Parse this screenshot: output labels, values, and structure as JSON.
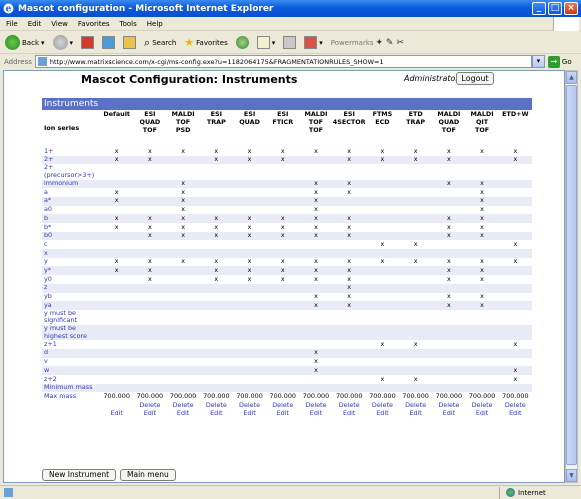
{
  "window": {
    "title": "Mascot configuration - Microsoft Internet Explorer",
    "buttons": [
      "_",
      "□",
      "×"
    ]
  },
  "menu": [
    "File",
    "Edit",
    "View",
    "Favorites",
    "Tools",
    "Help"
  ],
  "toolbar": {
    "back": "Back",
    "search": "Search",
    "favorites": "Favorites",
    "powermarks": "Powermarks"
  },
  "address": {
    "label": "Address",
    "url": "http://www.matrixscience.com/x-cgi/ms-config.exe?u=1182064175&FRAGMENTATIONRULES_SHOW=1",
    "go": "Go"
  },
  "page": {
    "title": "Mascot Configuration: Instruments",
    "user": "Administrator",
    "logout": "Logout",
    "section": "Instruments"
  },
  "table": {
    "row_header": "Ion series",
    "columns": [
      "Default",
      "ESI\nQUAD\nTOF",
      "MALDI\nTOF\nPSD",
      "ESI\nTRAP",
      "ESI\nQUAD",
      "ESI\nFTICR",
      "MALDI\nTOF\nTOF",
      "ESI\n4SECTOR",
      "FTMS\nECD",
      "ETD\nTRAP",
      "MALDI\nQUAD\nTOF",
      "MALDI\nQIT\nTOF",
      "ETD+W"
    ],
    "rows": [
      {
        "label": "1+",
        "marks": [
          "x",
          "x",
          "x",
          "x",
          "x",
          "x",
          "x",
          "x",
          "x",
          "x",
          "x",
          "x",
          "x"
        ]
      },
      {
        "label": "2+",
        "marks": [
          "x",
          "x",
          "",
          "x",
          "x",
          "x",
          "",
          "x",
          "x",
          "x",
          "x",
          "",
          "x"
        ]
      },
      {
        "label": "2+ (precursor>3+)",
        "marks": [
          "",
          "",
          "",
          "",
          "",
          "",
          "",
          "",
          "",
          "",
          "",
          "",
          ""
        ]
      },
      {
        "label": "immonium",
        "marks": [
          "",
          "",
          "x",
          "",
          "",
          "",
          "x",
          "x",
          "",
          "",
          "x",
          "x",
          ""
        ]
      },
      {
        "label": "a",
        "marks": [
          "x",
          "",
          "x",
          "",
          "",
          "",
          "x",
          "x",
          "",
          "",
          "",
          "x",
          ""
        ]
      },
      {
        "label": "a*",
        "marks": [
          "x",
          "",
          "x",
          "",
          "",
          "",
          "x",
          "",
          "",
          "",
          "",
          "x",
          ""
        ]
      },
      {
        "label": "a0",
        "marks": [
          "",
          "",
          "x",
          "",
          "",
          "",
          "x",
          "",
          "",
          "",
          "",
          "x",
          ""
        ]
      },
      {
        "label": "b",
        "marks": [
          "x",
          "x",
          "x",
          "x",
          "x",
          "x",
          "x",
          "x",
          "",
          "",
          "x",
          "x",
          ""
        ]
      },
      {
        "label": "b*",
        "marks": [
          "x",
          "x",
          "x",
          "x",
          "x",
          "x",
          "x",
          "x",
          "",
          "",
          "x",
          "x",
          ""
        ]
      },
      {
        "label": "b0",
        "marks": [
          "",
          "x",
          "x",
          "x",
          "x",
          "x",
          "x",
          "x",
          "",
          "",
          "x",
          "x",
          ""
        ]
      },
      {
        "label": "c",
        "marks": [
          "",
          "",
          "",
          "",
          "",
          "",
          "",
          "",
          "x",
          "x",
          "",
          "",
          "x"
        ]
      },
      {
        "label": "x",
        "marks": [
          "",
          "",
          "",
          "",
          "",
          "",
          "",
          "",
          "",
          "",
          "",
          "",
          ""
        ]
      },
      {
        "label": "y",
        "marks": [
          "x",
          "x",
          "x",
          "x",
          "x",
          "x",
          "x",
          "x",
          "x",
          "x",
          "x",
          "x",
          "x"
        ]
      },
      {
        "label": "y*",
        "marks": [
          "x",
          "x",
          "",
          "x",
          "x",
          "x",
          "x",
          "x",
          "",
          "",
          "x",
          "x",
          ""
        ]
      },
      {
        "label": "y0",
        "marks": [
          "",
          "x",
          "",
          "x",
          "x",
          "x",
          "x",
          "x",
          "",
          "",
          "x",
          "x",
          ""
        ]
      },
      {
        "label": "z",
        "marks": [
          "",
          "",
          "",
          "",
          "",
          "",
          "",
          "x",
          "",
          "",
          "",
          "",
          ""
        ]
      },
      {
        "label": "yb",
        "marks": [
          "",
          "",
          "",
          "",
          "",
          "",
          "x",
          "x",
          "",
          "",
          "x",
          "x",
          ""
        ]
      },
      {
        "label": "ya",
        "marks": [
          "",
          "",
          "",
          "",
          "",
          "",
          "x",
          "x",
          "",
          "",
          "x",
          "x",
          ""
        ]
      },
      {
        "label": "y must be significant",
        "marks": [
          "",
          "",
          "",
          "",
          "",
          "",
          "",
          "",
          "",
          "",
          "",
          "",
          ""
        ]
      },
      {
        "label": "y must be highest score",
        "marks": [
          "",
          "",
          "",
          "",
          "",
          "",
          "",
          "",
          "",
          "",
          "",
          "",
          ""
        ]
      },
      {
        "label": "z+1",
        "marks": [
          "",
          "",
          "",
          "",
          "",
          "",
          "",
          "",
          "x",
          "x",
          "",
          "",
          "x"
        ]
      },
      {
        "label": "d",
        "marks": [
          "",
          "",
          "",
          "",
          "",
          "",
          "x",
          "",
          "",
          "",
          "",
          "",
          ""
        ]
      },
      {
        "label": "v",
        "marks": [
          "",
          "",
          "",
          "",
          "",
          "",
          "x",
          "",
          "",
          "",
          "",
          "",
          ""
        ]
      },
      {
        "label": "w",
        "marks": [
          "",
          "",
          "",
          "",
          "",
          "",
          "x",
          "",
          "",
          "",
          "",
          "",
          "x"
        ]
      },
      {
        "label": "z+2",
        "marks": [
          "",
          "",
          "",
          "",
          "",
          "",
          "",
          "",
          "x",
          "x",
          "",
          "",
          "x"
        ]
      },
      {
        "label": "Minimum mass",
        "marks": [
          "",
          "",
          "",
          "",
          "",
          "",
          "",
          "",
          "",
          "",
          "",
          "",
          ""
        ]
      }
    ],
    "max_mass_label": "Max mass",
    "max_mass": [
      "700.000",
      "700.000",
      "700.000",
      "700.000",
      "700.000",
      "700.000",
      "700.000",
      "700.000",
      "700.000",
      "700.000",
      "700.000",
      "700.000",
      "700.000"
    ],
    "delete_label": "Delete",
    "edit_label": "Edit"
  },
  "buttons": {
    "new_instrument": "New Instrument",
    "main_menu": "Main menu"
  },
  "status": {
    "left": "",
    "zone": "Internet"
  }
}
